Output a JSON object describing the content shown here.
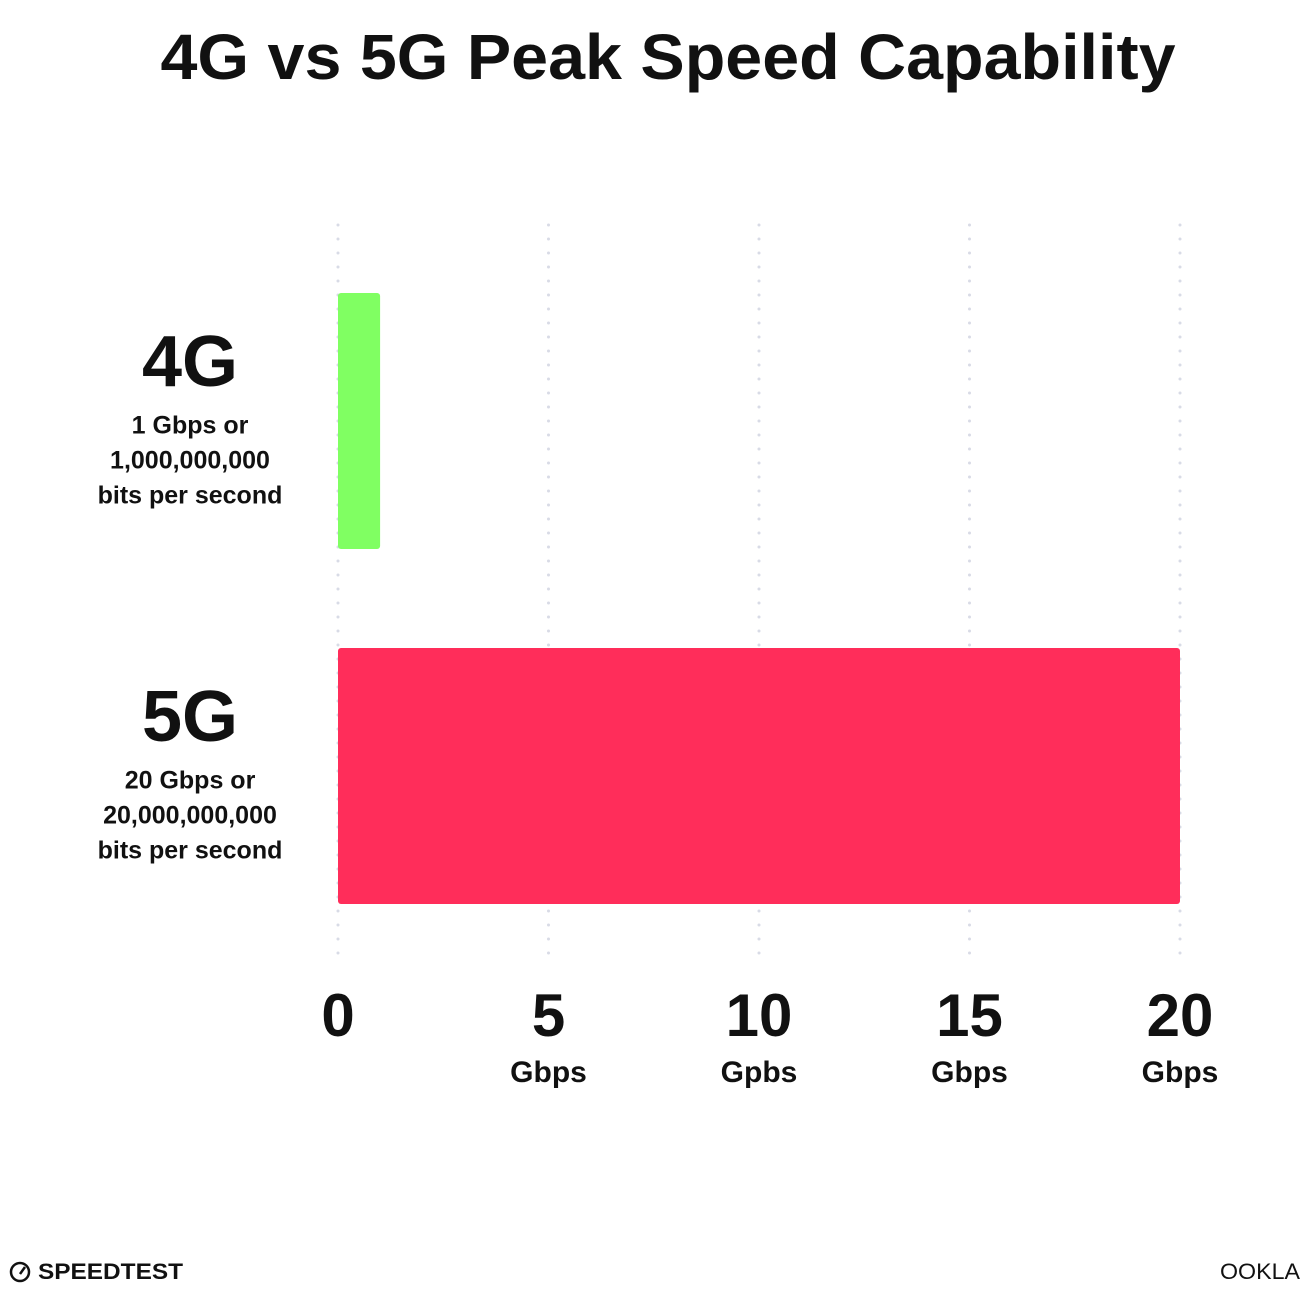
{
  "chart_data": {
    "type": "bar",
    "orientation": "horizontal",
    "title": "4G vs 5G Peak Speed Capability",
    "categories": [
      "4G",
      "5G"
    ],
    "descriptions": [
      [
        "1 Gbps or",
        "1,000,000,000",
        "bits per second"
      ],
      [
        "20 Gbps or",
        "20,000,000,000",
        "bits per second"
      ]
    ],
    "values": [
      1,
      20
    ],
    "colors": [
      "#80ff62",
      "#ff2d5a"
    ],
    "xlim": [
      0,
      20
    ],
    "xticks": [
      0,
      5,
      10,
      15,
      20
    ],
    "xtick_units": [
      null,
      "Gbps",
      "Gpbs",
      "Gbps",
      "Gbps"
    ],
    "grid": true,
    "branding": {
      "left": "SPEEDTEST",
      "right": "OOKLA"
    }
  }
}
